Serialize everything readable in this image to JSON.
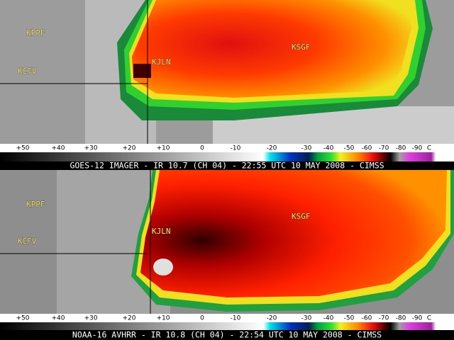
{
  "panels": [
    {
      "stations": [
        "KPPF",
        "KCFV",
        "KJLN",
        "KSGF"
      ],
      "scale_labels": [
        "+50",
        "+40",
        "+30",
        "+20",
        "+10",
        "0",
        "-10",
        "-20",
        "-30",
        "-40",
        "-50",
        "-60",
        "-70",
        "-80",
        "-90",
        "C"
      ],
      "caption": "GOES-12 IMAGER - IR 10.7 (CH 04) - 22:55 UTC 10 MAY 2008 - CIMSS"
    },
    {
      "stations": [
        "KPPF",
        "KCFV",
        "KJLN",
        "KSGF"
      ],
      "scale_labels": [
        "+50",
        "+40",
        "+30",
        "+20",
        "+10",
        "0",
        "-10",
        "-20",
        "-30",
        "-40",
        "-50",
        "-60",
        "-70",
        "-80",
        "-90",
        "C"
      ],
      "caption": "NOAA-16 AVHRR - IR 10.8 (CH 04) - 22:54 UTC 10 MAY 2008 - CIMSS"
    }
  ]
}
